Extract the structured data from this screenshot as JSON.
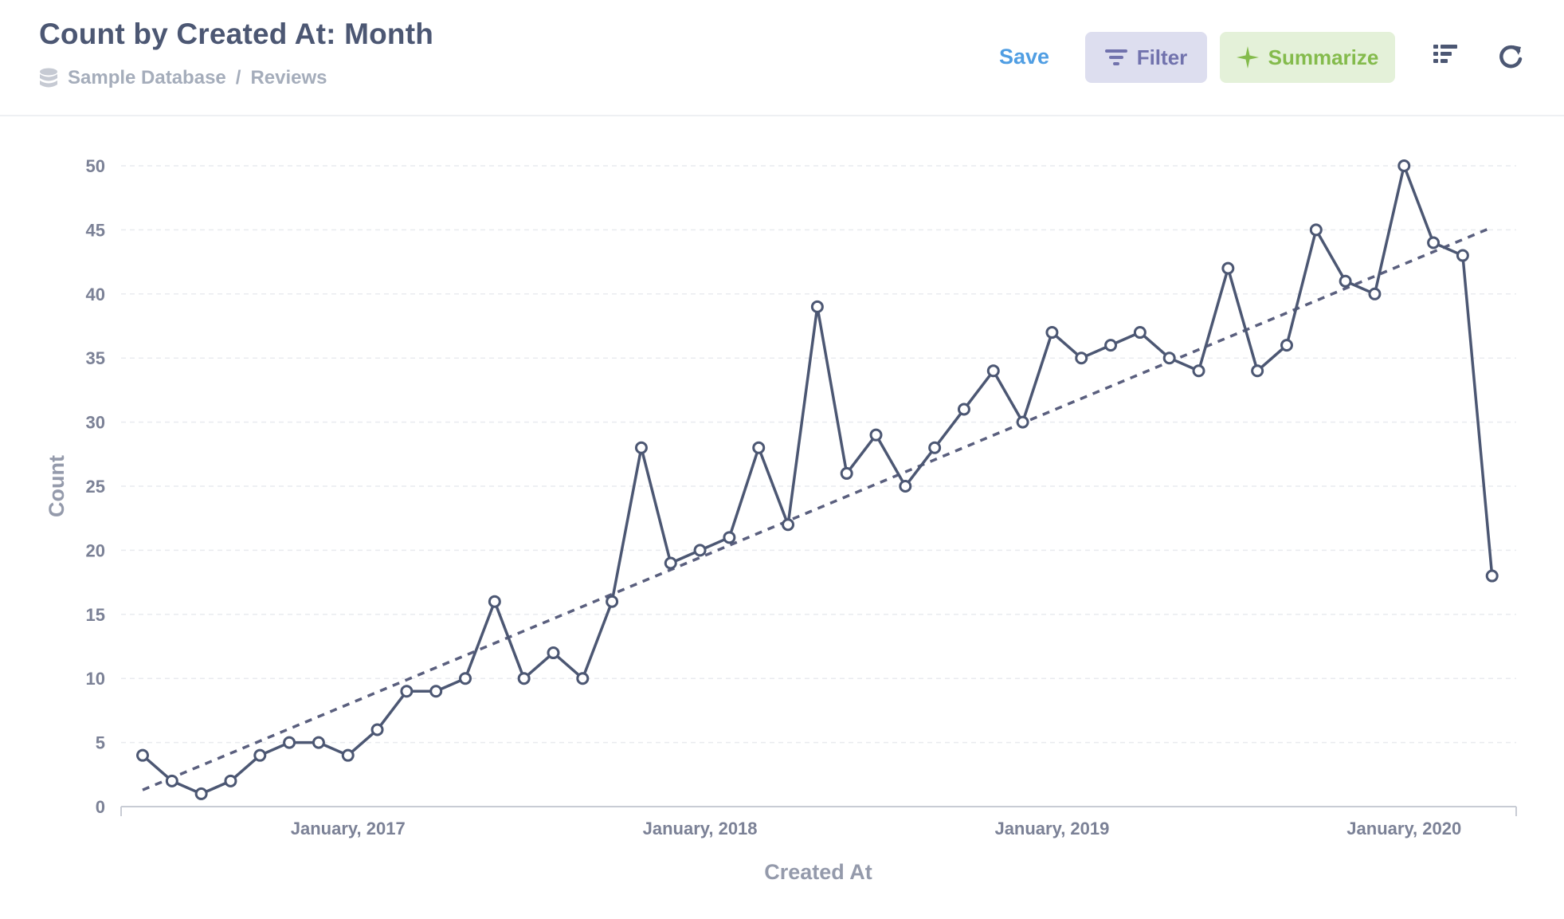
{
  "header": {
    "title": "Count by Created At: Month",
    "breadcrumb": {
      "database": "Sample Database",
      "separator": "/",
      "table": "Reviews"
    },
    "save_label": "Save",
    "filter_label": "Filter",
    "summarize_label": "Summarize"
  },
  "icons": {
    "database": "database-icon",
    "filter": "filter-icon",
    "summarize": "sparkle-icon",
    "chart_settings": "list-icon",
    "refresh": "refresh-icon"
  },
  "colors": {
    "line": "#4c5773",
    "trend": "#5a5f7e",
    "filter_bg": "#dddeef",
    "filter_text": "#7172ad",
    "summarize_bg": "#e4f1d9",
    "summarize_text": "#84bb4c",
    "save_text": "#509ee3"
  },
  "chart_data": {
    "type": "line",
    "title": "Count by Created At: Month",
    "xlabel": "Created At",
    "ylabel": "Count",
    "ylim": [
      0,
      50
    ],
    "y_ticks": [
      0,
      5,
      10,
      15,
      20,
      25,
      30,
      35,
      40,
      45,
      50
    ],
    "x_tick_labels": [
      {
        "label": "January, 2017",
        "date": "2017-01"
      },
      {
        "label": "January, 2018",
        "date": "2018-01"
      },
      {
        "label": "January, 2019",
        "date": "2019-01"
      },
      {
        "label": "January, 2020",
        "date": "2020-01"
      }
    ],
    "grid": true,
    "trendline": {
      "style": "dashed",
      "start": {
        "x": "2016-06",
        "y": 1.3
      },
      "end": {
        "x": "2020-04",
        "y": 45.2
      }
    },
    "series": [
      {
        "x": [
          "2016-06",
          "2016-07",
          "2016-08",
          "2016-09",
          "2016-10",
          "2016-11",
          "2016-12",
          "2017-01",
          "2017-02",
          "2017-03",
          "2017-04",
          "2017-05",
          "2017-06",
          "2017-07",
          "2017-08",
          "2017-09",
          "2017-10",
          "2017-11",
          "2017-12",
          "2018-01",
          "2018-02",
          "2018-03",
          "2018-04",
          "2018-05",
          "2018-06",
          "2018-07",
          "2018-08",
          "2018-09",
          "2018-10",
          "2018-11",
          "2018-12",
          "2019-01",
          "2019-02",
          "2019-03",
          "2019-04",
          "2019-05",
          "2019-06",
          "2019-07",
          "2019-08",
          "2019-09",
          "2019-10",
          "2019-11",
          "2019-12",
          "2020-01",
          "2020-02",
          "2020-03",
          "2020-04"
        ],
        "values": [
          4,
          2,
          1,
          2,
          4,
          5,
          5,
          4,
          6,
          9,
          9,
          10,
          16,
          10,
          12,
          10,
          16,
          28,
          19,
          20,
          21,
          28,
          22,
          39,
          26,
          29,
          25,
          28,
          31,
          34,
          30,
          37,
          35,
          36,
          37,
          35,
          34,
          42,
          34,
          36,
          45,
          41,
          40,
          50,
          44,
          43,
          18
        ]
      }
    ]
  }
}
